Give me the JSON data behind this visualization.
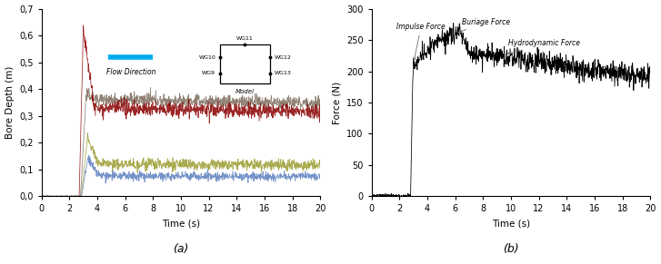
{
  "fig_width": 7.27,
  "fig_height": 2.91,
  "dpi": 100,
  "panel_a": {
    "xlim": [
      0,
      20
    ],
    "ylim": [
      0.0,
      0.7
    ],
    "xlabel": "Time (s)",
    "ylabel": "Bore Depth (m)",
    "ytick_labels": [
      "0,0",
      "0,1",
      "0,2",
      "0,3",
      "0,4",
      "0,5",
      "0,6",
      "0,7"
    ],
    "ytick_vals": [
      0.0,
      0.1,
      0.2,
      0.3,
      0.4,
      0.5,
      0.6,
      0.7
    ],
    "xticks": [
      0,
      2,
      4,
      6,
      8,
      10,
      12,
      14,
      16,
      18,
      20
    ],
    "subtitle": "(a)",
    "colors": {
      "upstream": "#7B6B5A",
      "downstream": "#8B0000",
      "side1": "#9B9B30",
      "side2": "#5B7FBF"
    },
    "flow_arrow_color": "#00AAEE"
  },
  "panel_b": {
    "xlim": [
      0,
      20
    ],
    "ylim": [
      0,
      300
    ],
    "xlabel": "Time (s)",
    "ylabel": "Force (N)",
    "yticks": [
      0,
      50,
      100,
      150,
      200,
      250,
      300
    ],
    "xticks": [
      0,
      2,
      4,
      6,
      8,
      10,
      12,
      14,
      16,
      18,
      20
    ],
    "subtitle": "(b)",
    "line_color": "#000000"
  }
}
